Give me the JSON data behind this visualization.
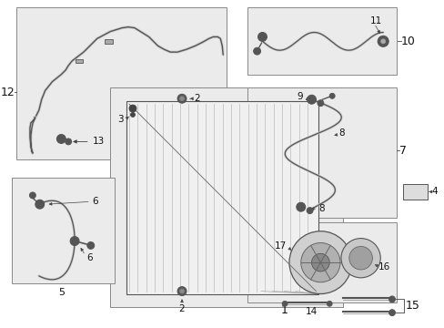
{
  "bg_color": "#ffffff",
  "box_fc": "#ebebeb",
  "box_ec": "#888888",
  "line_color": "#444444",
  "fig_width": 4.89,
  "fig_height": 3.6,
  "dpi": 100
}
